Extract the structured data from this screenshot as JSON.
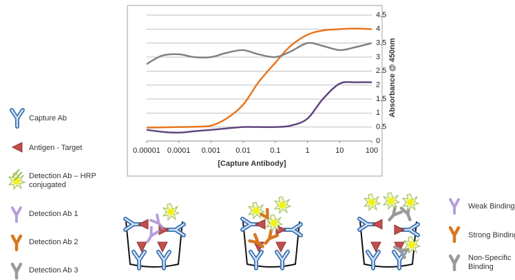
{
  "chart_data": {
    "type": "line",
    "x_label": "[Capture Antibody]",
    "y_label": "Absorbance @ 450nm",
    "log_x": true,
    "grid": true,
    "x": [
      1e-05,
      3e-05,
      0.0001,
      0.0003,
      0.001,
      0.003,
      0.01,
      0.03,
      0.1,
      0.3,
      1,
      3,
      10,
      30,
      100
    ],
    "series": [
      {
        "color": "#e8761e",
        "values": [
          0.48,
          0.49,
          0.5,
          0.51,
          0.55,
          0.8,
          1.3,
          2.1,
          2.8,
          3.4,
          3.8,
          3.95,
          4.0,
          4.02,
          4.0
        ]
      },
      {
        "color": "#60467f",
        "values": [
          0.4,
          0.33,
          0.3,
          0.35,
          0.4,
          0.45,
          0.5,
          0.5,
          0.5,
          0.55,
          0.8,
          1.5,
          2.05,
          2.1,
          2.1
        ]
      },
      {
        "color": "#808080",
        "values": [
          2.75,
          3.05,
          3.1,
          3.0,
          3.0,
          3.15,
          3.25,
          3.1,
          3.0,
          3.2,
          3.5,
          3.4,
          3.25,
          3.35,
          3.5
        ]
      }
    ],
    "xlim": [
      1e-05,
      100
    ],
    "xticks": [
      1e-05,
      0.0001,
      0.001,
      0.01,
      0.1,
      1,
      10,
      100
    ],
    "ylim": [
      0,
      4.5
    ],
    "yticks": [
      0,
      0.5,
      1,
      1.5,
      2,
      2.5,
      3,
      3.5,
      4,
      4.5
    ]
  },
  "legend_left": [
    "Capture Ab",
    "Antigen - Target",
    [
      "Detection Ab – HRP",
      "conjugated"
    ],
    "Detection Ab 1",
    "Detection Ab 2",
    "Detection Ab 3"
  ],
  "legend_right": [
    "Weak Binding",
    "Strong Binding",
    [
      "Non-Specific",
      "Binding"
    ]
  ]
}
